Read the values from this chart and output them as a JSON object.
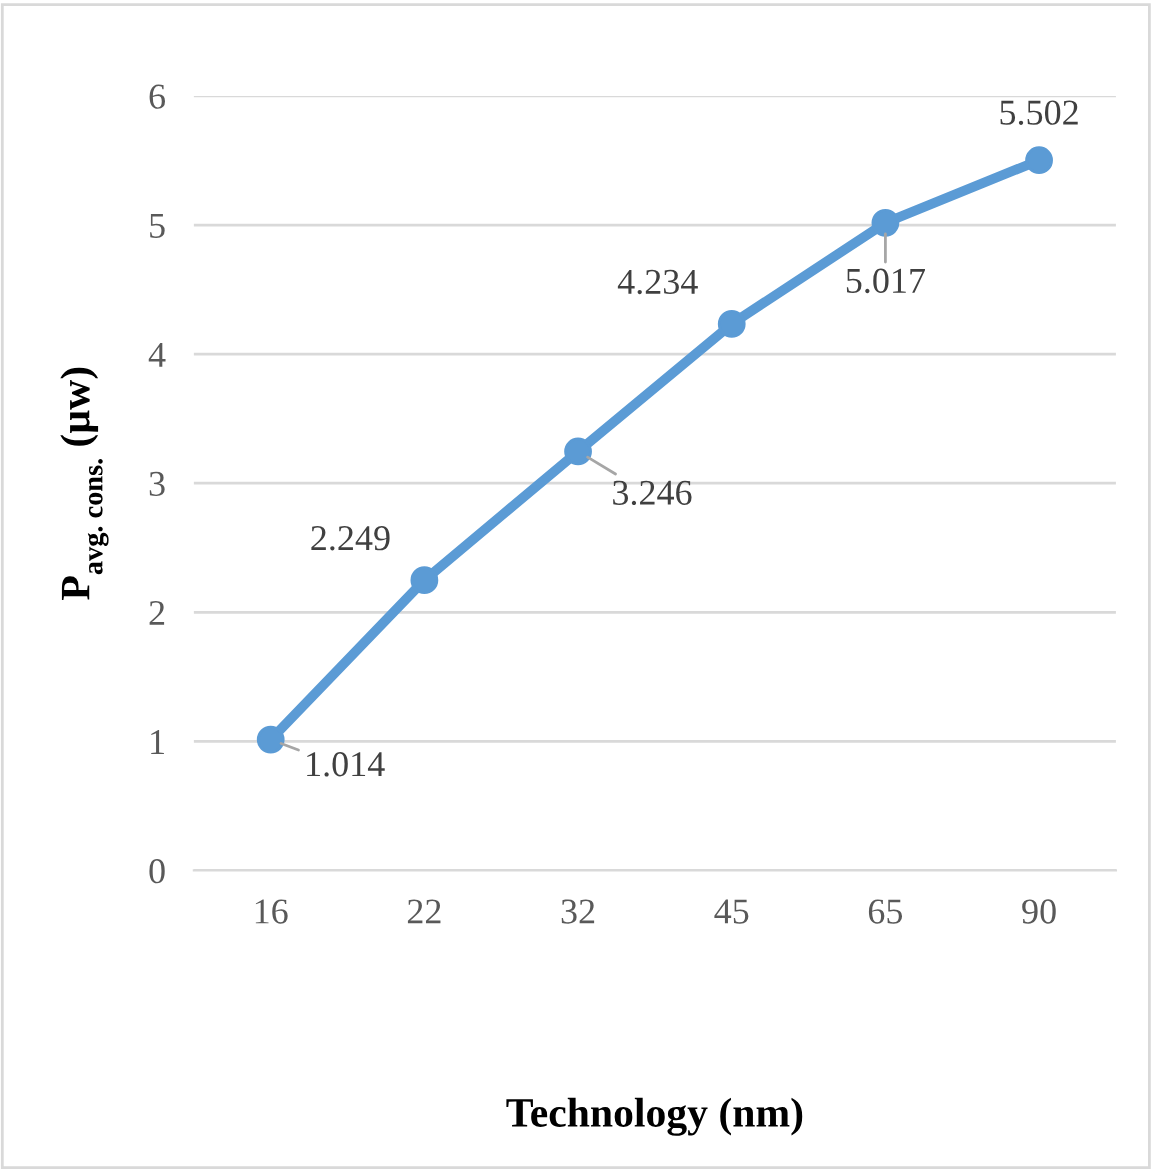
{
  "chart_data": {
    "type": "line",
    "xlabel": "Technology (nm)",
    "ylabel": "P$_{avg. cons.}$ (µw)",
    "categories": [
      "16",
      "22",
      "32",
      "45",
      "65",
      "90"
    ],
    "series": [
      {
        "color": "#5b9bd5",
        "values": [
          1.014,
          2.249,
          3.246,
          4.234,
          5.017,
          5.502
        ]
      }
    ],
    "ylim": [
      0,
      6
    ],
    "yticks": [
      0,
      1,
      2,
      3,
      4,
      5,
      6
    ],
    "grid": "y",
    "marker": "circle",
    "line_style": "solid",
    "data_labels": true,
    "legend": false
  }
}
